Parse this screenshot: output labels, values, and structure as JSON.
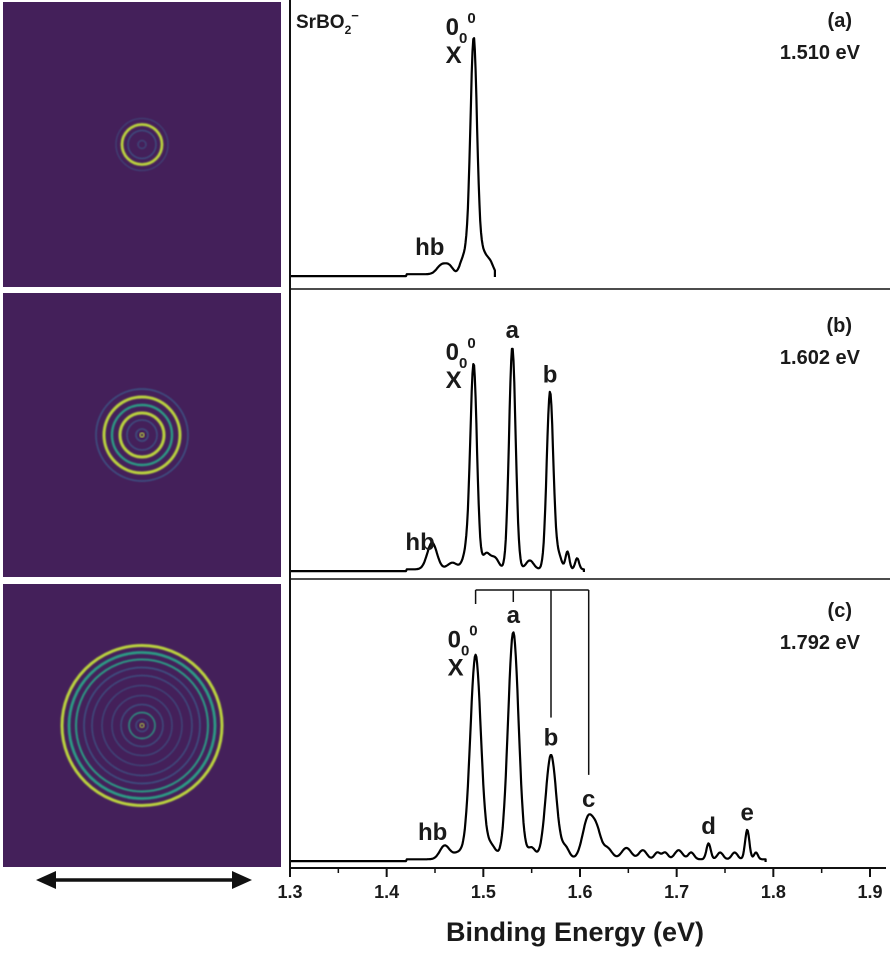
{
  "species": {
    "main": "SrBO",
    "subscript": "2",
    "charge": "−"
  },
  "x_axis_label": "Binding Energy (eV)",
  "chart_data": [
    {
      "type": "line",
      "panel": "(a)",
      "photon_energy": "1.510 eV",
      "xlim": [
        1.3,
        1.9
      ],
      "x_ticks": [
        "1.3",
        "1.4",
        "1.5",
        "1.6",
        "1.7",
        "1.8",
        "1.9"
      ],
      "peaks": [
        {
          "label": "hb",
          "x": 1.457,
          "y": 0.04
        },
        {
          "label": "X 0_0^0",
          "x": 1.49,
          "y": 1.0
        }
      ]
    },
    {
      "type": "line",
      "panel": "(b)",
      "photon_energy": "1.602 eV",
      "xlim": [
        1.3,
        1.9
      ],
      "x_ticks": [
        "1.3",
        "1.4",
        "1.5",
        "1.6",
        "1.7",
        "1.8",
        "1.9"
      ],
      "peaks": [
        {
          "label": "hb",
          "x": 1.447,
          "y": 0.12
        },
        {
          "label": "X 0_0^0",
          "x": 1.49,
          "y": 0.91
        },
        {
          "label": "a",
          "x": 1.53,
          "y": 1.0
        },
        {
          "label": "b",
          "x": 1.569,
          "y": 0.8
        }
      ]
    },
    {
      "type": "line",
      "panel": "(c)",
      "photon_energy": "1.792 eV",
      "xlim": [
        1.3,
        1.9
      ],
      "x_ticks": [
        "1.3",
        "1.4",
        "1.5",
        "1.6",
        "1.7",
        "1.8",
        "1.9"
      ],
      "peaks": [
        {
          "label": "hb",
          "x": 1.46,
          "y": 0.06
        },
        {
          "label": "X 0_0^0",
          "x": 1.492,
          "y": 0.9
        },
        {
          "label": "a",
          "x": 1.531,
          "y": 1.0
        },
        {
          "label": "b",
          "x": 1.57,
          "y": 0.46
        },
        {
          "label": "c",
          "x": 1.609,
          "y": 0.19
        },
        {
          "label": "d",
          "x": 1.733,
          "y": 0.07
        },
        {
          "label": "e",
          "x": 1.773,
          "y": 0.13
        }
      ]
    }
  ],
  "colors": {
    "image_background": "#44205a",
    "ring_bright": "#c8e63c",
    "ring_mid": "#2aa88a",
    "ring_dim": "#3b5c8c",
    "trace": "#000000"
  },
  "velocity_map_images": [
    {
      "panel": "(a)",
      "description": "single bright ring"
    },
    {
      "panel": "(b)",
      "description": "three concentric rings"
    },
    {
      "panel": "(c)",
      "description": "multiple concentric rings"
    }
  ]
}
